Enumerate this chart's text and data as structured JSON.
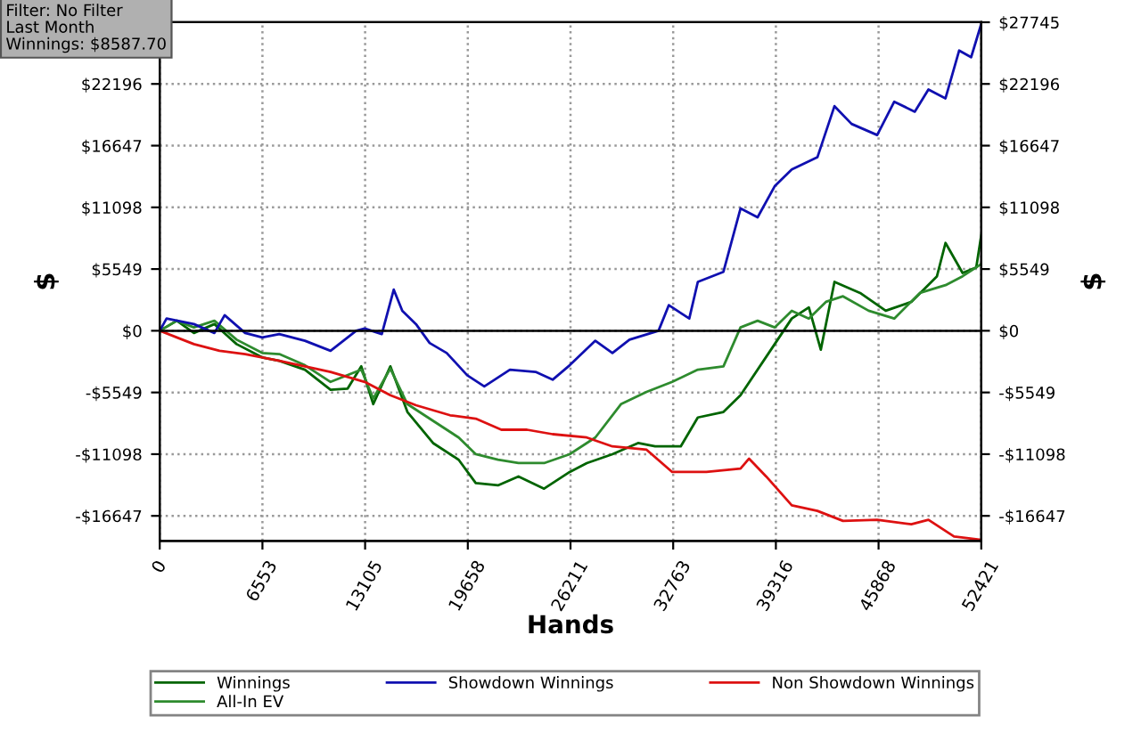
{
  "chart_data": {
    "type": "line",
    "xlabel": "Hands",
    "ylabel": "$",
    "y2label": "$",
    "annotations": [
      "Filter: No Filter\nLast Month\nWinnings: $8587.70"
    ],
    "series": [
      {
        "name": "Winnings",
        "color": "#006400",
        "x": [
          0,
          1090,
          2180,
          3488,
          4905,
          6540,
          7630,
          9265,
          10900,
          11990,
          12862,
          13625,
          14715,
          15805,
          17440,
          19075,
          20165,
          21582,
          22890,
          24525,
          26160,
          27250,
          28885,
          30520,
          31610,
          33245,
          34335,
          35970,
          37060,
          39240,
          40330,
          41420,
          42183,
          43055,
          44690,
          46325,
          47960,
          49595,
          50140,
          51230,
          52102,
          52421
        ],
        "values": [
          0,
          900,
          -200,
          600,
          -1200,
          -2400,
          -2700,
          -3500,
          -5300,
          -5200,
          -3200,
          -6600,
          -3200,
          -7300,
          -10100,
          -11600,
          -13700,
          -13900,
          -13100,
          -14200,
          -12700,
          -11900,
          -11100,
          -10100,
          -10400,
          -10400,
          -7800,
          -7300,
          -5800,
          -1200,
          1100,
          2100,
          -1700,
          4400,
          3400,
          1800,
          2600,
          4900,
          7900,
          5200,
          5700,
          8600
        ]
      },
      {
        "name": "All-In EV",
        "color": "#2e8b2e",
        "x": [
          0,
          1090,
          2180,
          3488,
          4905,
          6540,
          7630,
          9265,
          10900,
          12862,
          13625,
          14715,
          15805,
          17440,
          19075,
          20165,
          21582,
          22890,
          24525,
          26160,
          27795,
          29430,
          31065,
          32700,
          34335,
          35970,
          37060,
          38150,
          39240,
          40330,
          41420,
          42510,
          43600,
          45235,
          46870,
          48505,
          50140,
          51230,
          52421
        ],
        "values": [
          0,
          900,
          300,
          900,
          -800,
          -2000,
          -2100,
          -3100,
          -4600,
          -3500,
          -6100,
          -3400,
          -6600,
          -8100,
          -9600,
          -11100,
          -11600,
          -11900,
          -11900,
          -11100,
          -9600,
          -6600,
          -5500,
          -4600,
          -3500,
          -3200,
          300,
          900,
          300,
          1800,
          1100,
          2600,
          3100,
          1800,
          1100,
          3400,
          4100,
          4900,
          6000
        ]
      },
      {
        "name": "Showdown Winnings",
        "color": "#1010b0",
        "x": [
          0,
          436,
          2180,
          3488,
          4142,
          5450,
          6540,
          7630,
          9265,
          10900,
          12535,
          13080,
          14170,
          14933,
          15478,
          16350,
          17222,
          18312,
          19620,
          20710,
          22345,
          23980,
          25070,
          26160,
          27795,
          28885,
          29975,
          31828,
          32482,
          33790,
          34335,
          35970,
          37060,
          38150,
          39240,
          40330,
          41965,
          43055,
          44145,
          45780,
          46870,
          48178,
          49050,
          50140,
          51012,
          51775,
          52421
        ],
        "values": [
          0,
          1100,
          600,
          -200,
          1400,
          -200,
          -600,
          -300,
          -900,
          -1800,
          0,
          200,
          -300,
          3700,
          1800,
          600,
          -1100,
          -2000,
          -4000,
          -5000,
          -3500,
          -3700,
          -4400,
          -3100,
          -900,
          -2000,
          -800,
          0,
          2300,
          1100,
          4400,
          5300,
          11000,
          10200,
          13000,
          14500,
          15600,
          20200,
          18600,
          17600,
          20600,
          19700,
          21700,
          20900,
          25200,
          24600,
          27600
        ]
      },
      {
        "name": "Non Showdown Winnings",
        "color": "#dd1111",
        "x": [
          0,
          1090,
          2180,
          3815,
          5450,
          7630,
          9265,
          10900,
          13080,
          14715,
          16350,
          18530,
          20165,
          21800,
          23435,
          25070,
          27250,
          28885,
          31065,
          32700,
          34880,
          37060,
          37605,
          38695,
          40330,
          41965,
          43600,
          45780,
          47960,
          49050,
          50685,
          52421
        ],
        "values": [
          0,
          -600,
          -1200,
          -1800,
          -2100,
          -2700,
          -3200,
          -3700,
          -4600,
          -5800,
          -6700,
          -7600,
          -7900,
          -8900,
          -8900,
          -9300,
          -9600,
          -10400,
          -10700,
          -12700,
          -12700,
          -12400,
          -11500,
          -13100,
          -15700,
          -16200,
          -17100,
          -17000,
          -17400,
          -17000,
          -18500,
          -18800
        ]
      }
    ],
    "xlim": [
      0,
      52421
    ],
    "xticks": [
      0,
      6553,
      13105,
      19658,
      26211,
      32763,
      39316,
      45868,
      52421
    ],
    "ylim": [
      -18900,
      27745
    ],
    "yticks": [
      {
        "value": -16647,
        "label": "-$16647"
      },
      {
        "value": -11098,
        "label": "-$11098"
      },
      {
        "value": -5549,
        "label": "-$5549"
      },
      {
        "value": 0,
        "label": "$0"
      },
      {
        "value": 5549,
        "label": "$5549"
      },
      {
        "value": 11098,
        "label": "$11098"
      },
      {
        "value": 16647,
        "label": "$16647"
      },
      {
        "value": 22196,
        "label": "$22196"
      }
    ],
    "y2lim": [
      -18900,
      27745
    ],
    "y2ticks": [
      {
        "value": -16647,
        "label": "-$16647"
      },
      {
        "value": -11098,
        "label": "-$11098"
      },
      {
        "value": -5549,
        "label": "-$5549"
      },
      {
        "value": 0,
        "label": "$0"
      },
      {
        "value": 5549,
        "label": "$5549"
      },
      {
        "value": 11098,
        "label": "$11098"
      },
      {
        "value": 16647,
        "label": "$16647"
      },
      {
        "value": 22196,
        "label": "$22196"
      },
      {
        "value": 27745,
        "label": "$27745"
      }
    ],
    "ref_lines": [
      {
        "axis": "y",
        "value": 0,
        "color": "#000000",
        "line_style": "solid"
      }
    ],
    "grid": true,
    "legend": "bottom",
    "line_style": "solid",
    "marker": "none"
  }
}
